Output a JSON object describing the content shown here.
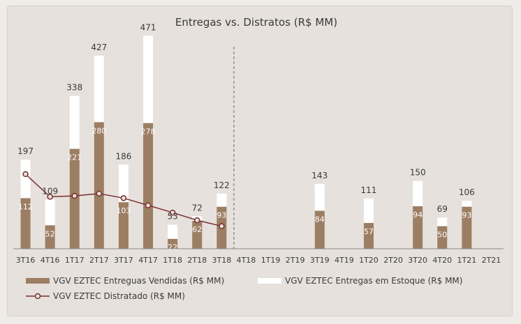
{
  "chart_data": {
    "type": "bar",
    "title": "Entregas vs. Distratos (R$ MM)",
    "categories": [
      "3T16",
      "4T16",
      "1T17",
      "2T17",
      "3T17",
      "4T17",
      "1T18",
      "2T18",
      "3T18",
      "4T18",
      "1T19",
      "2T19",
      "3T19",
      "4T19",
      "1T20",
      "2T20",
      "3T20",
      "4T20",
      "1T21",
      "2T21"
    ],
    "stacked": true,
    "series": [
      {
        "name": "VGV EZTEC Entreguas Vendidas (R$ MM)",
        "kind": "bar",
        "color": "#9c7e63",
        "values": [
          112,
          52,
          221,
          280,
          103,
          278,
          22,
          62,
          93,
          null,
          null,
          null,
          84,
          null,
          57,
          null,
          94,
          50,
          93,
          null
        ]
      },
      {
        "name": "VGV EZTEC Entregas em Estoque (R$ MM)",
        "kind": "bar",
        "color": "#ffffff",
        "values": [
          85,
          57,
          117,
          147,
          83,
          193,
          31,
          10,
          29,
          null,
          null,
          null,
          59,
          null,
          54,
          null,
          56,
          19,
          13,
          null
        ]
      },
      {
        "name": "VGV EZTEC Distratado (R$ MM)",
        "kind": "line",
        "color": "#7a2e2e",
        "values": [
          165,
          115,
          117,
          122,
          112,
          96,
          80,
          63,
          50,
          null,
          null,
          null,
          null,
          null,
          null,
          null,
          null,
          null,
          null,
          null
        ]
      }
    ],
    "totals": [
      197,
      109,
      338,
      427,
      186,
      471,
      53,
      72,
      122,
      null,
      null,
      null,
      143,
      null,
      111,
      null,
      150,
      69,
      106,
      null
    ],
    "ylim": [
      0,
      490
    ],
    "divider_after_category": "3T18",
    "grid": false,
    "legend_position": "bottom"
  }
}
